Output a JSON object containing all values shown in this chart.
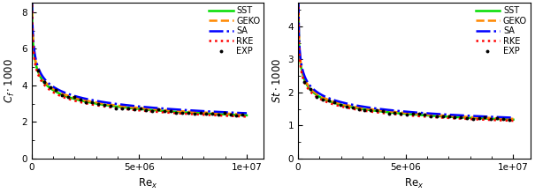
{
  "xlabel": "Re$_x$",
  "xlim": [
    0,
    10800000.0
  ],
  "ylim_left": [
    0,
    8.5
  ],
  "ylim_right": [
    0,
    4.7
  ],
  "yticks_left": [
    0,
    2,
    4,
    6,
    8
  ],
  "yticks_right": [
    0,
    1,
    2,
    3,
    4
  ],
  "xticks": [
    0,
    5000000,
    10000000
  ],
  "legend_labels": [
    "SST",
    "GEKO",
    "SA",
    "RKE",
    "EXP"
  ],
  "colors": {
    "SST": "#00dd00",
    "GEKO": "#ff8800",
    "SA": "#0000ff",
    "RKE": "#ff0000"
  },
  "lstyles": {
    "SST": "-",
    "GEKO": "--",
    "SA": "-.",
    "RKE": ":"
  },
  "lwidths": {
    "SST": 1.8,
    "GEKO": 1.8,
    "SA": 1.8,
    "RKE": 1.8
  },
  "background": "#ffffff",
  "rex_start": 8000,
  "rex_end": 10000000.0,
  "n_points": 300,
  "cf_coeff": 0.0594,
  "cf_exp_val": -0.2,
  "st_coeff": 0.0296,
  "st_exp_val": -0.2,
  "scales_cf": {
    "SST": 1.0,
    "GEKO": 1.02,
    "SA": 1.05,
    "RKE": 0.97
  },
  "scales_st": {
    "SST": 1.0,
    "GEKO": 1.02,
    "SA": 1.05,
    "RKE": 0.97
  },
  "exp_start": 300000.0,
  "exp_end": 9800000.0,
  "exp_n": 35,
  "exp_noise": 0.018,
  "exp_seed": 42,
  "ylabel_left": "$C_f \\cdot 1000$",
  "ylabel_right": "$St \\cdot 1000$"
}
